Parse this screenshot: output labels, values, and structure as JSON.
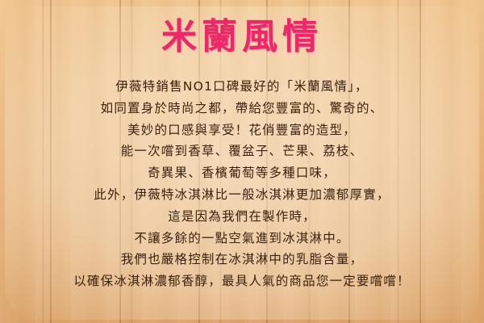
{
  "title": "米蘭風情",
  "paragraph": [
    "伊薇特銷售NO1口碑最好的「米蘭風情」，",
    "如同置身於時尚之都，帶給您豐富的、驚奇的、",
    "美妙的口感與享受！花俏豐富的造型，",
    "能一次嚐到香草、覆盆子、芒果、荔枝、",
    "奇異果、香檳葡萄等多種口味，",
    "此外，伊薇特冰淇淋比一般冰淇淋更加濃郁厚實，",
    "這是因為我們在製作時，",
    "不讓多餘的一點空氣進到冰淇淋中。",
    "我們也嚴格控制在冰淇淋中的乳脂含量，",
    "以確保冰淇淋濃郁香醇，最具人氣的商品您一定要嚐嚐！"
  ],
  "colors": {
    "title": "#f2246b",
    "text": "#3a220f",
    "wood": "#e8b67d"
  }
}
